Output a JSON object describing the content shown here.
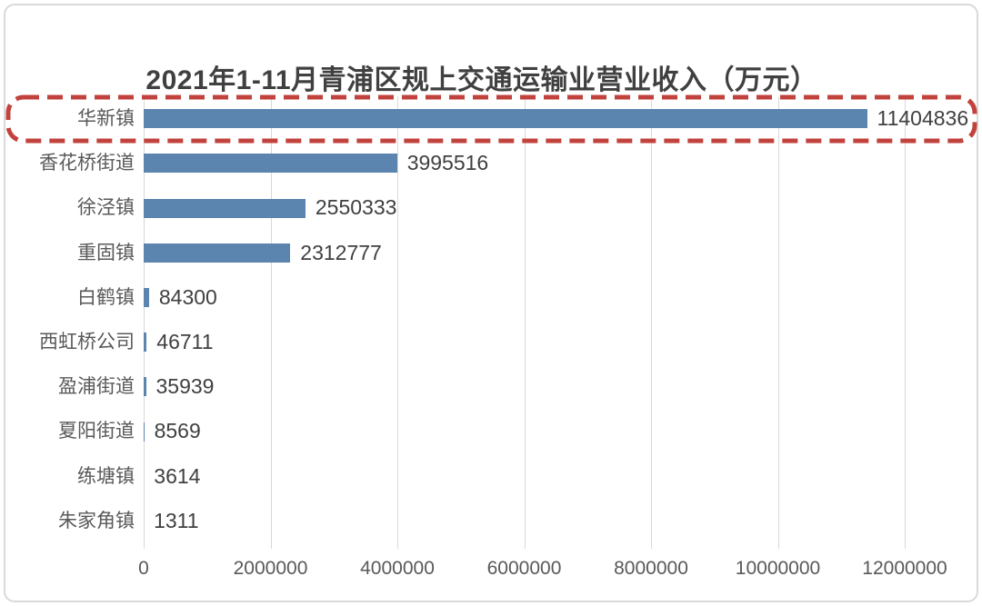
{
  "chart_data": {
    "type": "bar",
    "orientation": "horizontal",
    "title": "2021年1-11月青浦区规上交通运输业营业收入（万元）",
    "categories": [
      "华新镇",
      "香花桥街道",
      "徐泾镇",
      "重固镇",
      "白鹤镇",
      "西虹桥公司",
      "盈浦街道",
      "夏阳街道",
      "练塘镇",
      "朱家角镇"
    ],
    "values": [
      11404836,
      3995516,
      2550333,
      2312777,
      84300,
      46711,
      35939,
      8569,
      3614,
      1311
    ],
    "data_labels": [
      "11404836",
      "3995516",
      "2550333",
      "2312777",
      "84300",
      "46711",
      "35939",
      "8569",
      "3614",
      "1311"
    ],
    "xlabel": "",
    "ylabel": "",
    "xlim": [
      0,
      12000000
    ],
    "x_ticks": [
      0,
      2000000,
      4000000,
      6000000,
      8000000,
      10000000,
      12000000
    ],
    "x_tick_labels": [
      "0",
      "2000000",
      "4000000",
      "6000000",
      "8000000",
      "10000000",
      "12000000"
    ],
    "grid": "vertical-only",
    "legend": "none",
    "highlighted_category": "华新镇",
    "highlight_style": "red-dashed-rounded-box",
    "colors": {
      "bar": "#5b84ae",
      "highlight": "#c2423d",
      "grid": "#d9d9d9",
      "title_text": "#404040",
      "category_text": "#595959",
      "value_text": "#404040",
      "tick_text": "#595959",
      "frame_border": "#d9d9d9",
      "background": "#ffffff"
    }
  }
}
